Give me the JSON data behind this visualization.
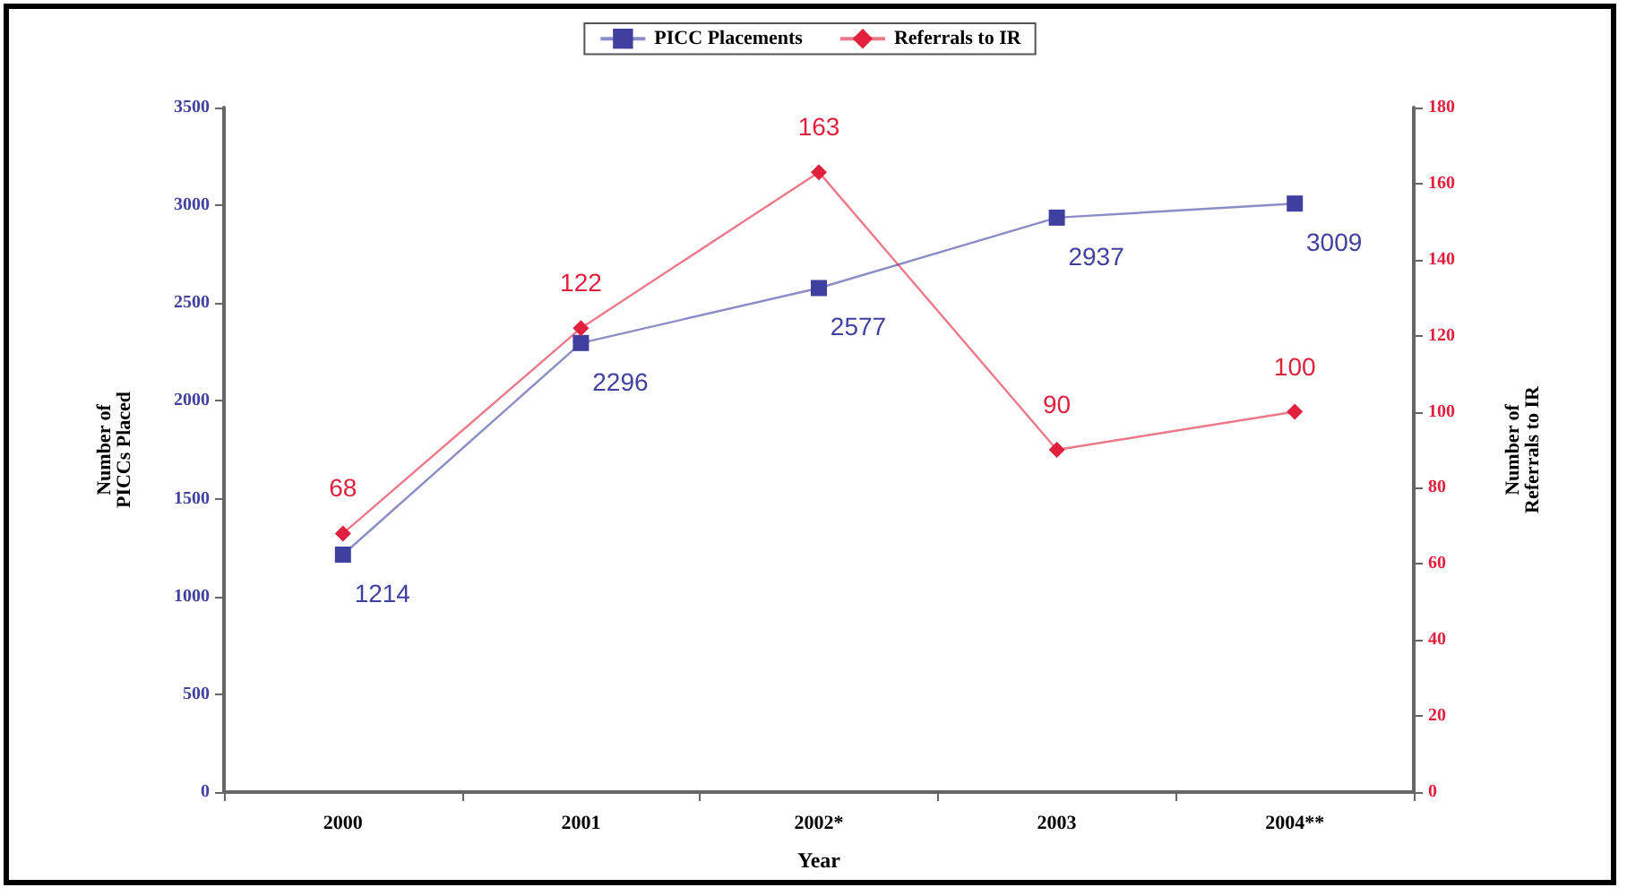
{
  "chart_data": {
    "type": "line",
    "xlabel": "Year",
    "ylabel": "Number of\nPICCs Placed",
    "y2label": "Number of\nReferrals to IR",
    "categories": [
      "2000",
      "2001",
      "2002*",
      "2003",
      "2004**"
    ],
    "series": [
      {
        "name": "PICC Placements",
        "color": "#4040a0",
        "values": [
          1214,
          2296,
          2577,
          2937,
          3009
        ],
        "marker": "square"
      },
      {
        "name": "Referrals to IR",
        "color": "#e0203c",
        "values": [
          68,
          122,
          163,
          90,
          100
        ],
        "axis": "y2",
        "marker": "diamond"
      }
    ],
    "ylim": [
      0,
      3500
    ],
    "yticks": [
      0,
      500,
      1000,
      1500,
      2000,
      2500,
      3000,
      3500
    ],
    "y2lim": [
      0,
      180
    ],
    "y2ticks": [
      0,
      20,
      40,
      60,
      80,
      100,
      120,
      140,
      160,
      180
    ],
    "data_labels": true,
    "grid": false,
    "legend": "top"
  }
}
